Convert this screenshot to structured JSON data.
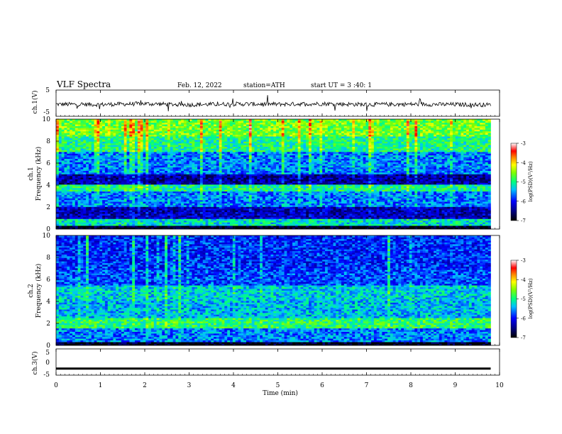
{
  "header": {
    "title": "VLF Spectra",
    "date": "Feb. 12, 2022",
    "station": "station=ATH",
    "start": "start UT = 3 :40: 1"
  },
  "chart_data": [
    {
      "type": "line",
      "name": "ch1-waveform",
      "ylabel": "ch.1(V)",
      "ylim": [
        -5,
        5
      ],
      "yticks": [
        "5",
        "-5"
      ],
      "x": [
        0,
        1,
        2,
        3,
        4,
        5,
        6,
        7,
        8,
        9,
        9.8
      ],
      "y": [
        -0.4,
        -0.5,
        -0.2,
        -0.6,
        -0.3,
        -0.4,
        -0.2,
        -0.5,
        -0.4,
        -0.5,
        -0.6
      ]
    },
    {
      "type": "heatmap",
      "name": "ch1-spectrogram",
      "ylabel": "ch.1\nFrequency (kHz)",
      "ylabel_line1": "ch.1",
      "ylabel_line2": "Frequency (kHz)",
      "ylim": [
        0,
        10
      ],
      "yticks": [
        "0",
        "2",
        "4",
        "6",
        "8",
        "10"
      ],
      "xlim": [
        0,
        9.8
      ],
      "colorbar": {
        "label": "log(PSD)(V²/Hz)",
        "range": [
          -7,
          -3
        ],
        "ticks": [
          "-3",
          "-4",
          "-5",
          "-6",
          "-7"
        ]
      },
      "band_levels_log_psd": [
        {
          "freq_khz": [
            0.0,
            0.3
          ],
          "level": -6.9
        },
        {
          "freq_khz": [
            0.3,
            1.0
          ],
          "level": -5.2
        },
        {
          "freq_khz": [
            1.0,
            2.0
          ],
          "level": -6.3
        },
        {
          "freq_khz": [
            2.0,
            3.5
          ],
          "level": -5.6
        },
        {
          "freq_khz": [
            3.5,
            4.0
          ],
          "level": -5.0
        },
        {
          "freq_khz": [
            4.0,
            5.0
          ],
          "level": -6.4
        },
        {
          "freq_khz": [
            5.0,
            7.0
          ],
          "level": -5.6
        },
        {
          "freq_khz": [
            7.0,
            8.5
          ],
          "level": -5.0
        },
        {
          "freq_khz": [
            8.5,
            10.0
          ],
          "level": -4.6
        }
      ]
    },
    {
      "type": "heatmap",
      "name": "ch2-spectrogram",
      "ylabel": "ch.2\nFrequency (kHz)",
      "ylabel_line1": "ch.2",
      "ylabel_line2": "Frequency (kHz)",
      "ylim": [
        0,
        10
      ],
      "yticks": [
        "0",
        "2",
        "4",
        "6",
        "8",
        "10"
      ],
      "xlim": [
        0,
        9.8
      ],
      "colorbar": {
        "label": "log(PSD)(V²/Hz)",
        "range": [
          -7,
          -3
        ],
        "ticks": [
          "-3",
          "-4",
          "-5",
          "-6",
          "-7"
        ]
      },
      "band_levels_log_psd": [
        {
          "freq_khz": [
            0.0,
            0.3
          ],
          "level": -6.9
        },
        {
          "freq_khz": [
            0.3,
            1.5
          ],
          "level": -5.6
        },
        {
          "freq_khz": [
            1.5,
            2.5
          ],
          "level": -4.9
        },
        {
          "freq_khz": [
            2.5,
            4.0
          ],
          "level": -5.4
        },
        {
          "freq_khz": [
            4.0,
            5.5
          ],
          "level": -5.3
        },
        {
          "freq_khz": [
            5.5,
            7.0
          ],
          "level": -5.8
        },
        {
          "freq_khz": [
            7.0,
            10.0
          ],
          "level": -5.9
        }
      ]
    },
    {
      "type": "line",
      "name": "ch3-waveform",
      "ylabel": "ch.3(V)",
      "ylim": [
        -5,
        5
      ],
      "yticks": [
        "5",
        "0",
        "-5"
      ],
      "x": [
        0,
        9.8
      ],
      "y": [
        -2.5,
        -2.5
      ]
    }
  ],
  "xaxis": {
    "label": "Time (min)",
    "range": [
      0,
      10
    ],
    "ticks": [
      "0",
      "1",
      "2",
      "3",
      "4",
      "5",
      "6",
      "7",
      "8",
      "9",
      "10"
    ]
  },
  "colors": {
    "colormap": [
      "#000080",
      "#0000ff",
      "#00a0ff",
      "#00ffff",
      "#80ff80",
      "#ffff00",
      "#ff8000",
      "#ff0000",
      "#ffffff"
    ]
  }
}
